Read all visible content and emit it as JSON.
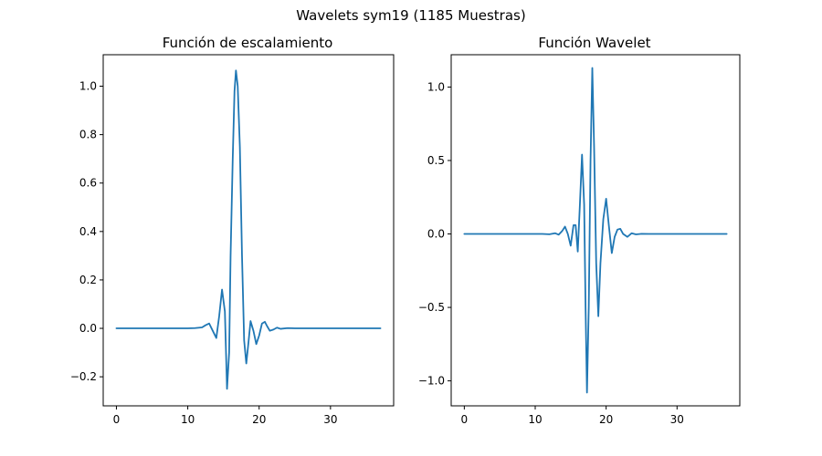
{
  "figure": {
    "suptitle": "Wavelets sym19 (1185 Muestras)"
  },
  "colors": {
    "line": "#1f77b4"
  },
  "chart_data": [
    {
      "type": "line",
      "title": "Función de escalamiento",
      "xlabel": "",
      "ylabel": "",
      "xlim": [
        -1.85,
        38.85
      ],
      "ylim": [
        -0.32,
        1.13
      ],
      "xticks": [
        0,
        10,
        20,
        30
      ],
      "xtick_labels": [
        "0",
        "10",
        "20",
        "30"
      ],
      "yticks": [
        -0.2,
        0.0,
        0.2,
        0.4,
        0.6,
        0.8,
        1.0
      ],
      "ytick_labels": [
        "−0.2",
        "0.0",
        "0.2",
        "0.4",
        "0.6",
        "0.8",
        "1.0"
      ],
      "grid": false,
      "series": [
        {
          "x": [
            0,
            10,
            11,
            12,
            12.5,
            13,
            13.5,
            14,
            14.4,
            14.8,
            15.2,
            15.5,
            15.8,
            16.0,
            16.3,
            16.55,
            16.75,
            17.0,
            17.3,
            17.6,
            17.9,
            18.2,
            18.5,
            18.8,
            19.2,
            19.6,
            20.0,
            20.4,
            20.8,
            21.1,
            21.5,
            22.0,
            22.5,
            23,
            24,
            25,
            26,
            37
          ],
          "y": [
            0,
            0,
            0.001,
            0.004,
            0.013,
            0.02,
            -0.01,
            -0.04,
            0.05,
            0.16,
            0.07,
            -0.25,
            -0.1,
            0.3,
            0.7,
            0.98,
            1.065,
            1.0,
            0.75,
            0.3,
            -0.05,
            -0.145,
            -0.06,
            0.03,
            -0.01,
            -0.065,
            -0.03,
            0.02,
            0.027,
            0.01,
            -0.01,
            -0.005,
            0.003,
            -0.002,
            0.001,
            0,
            0,
            0
          ]
        }
      ]
    },
    {
      "type": "line",
      "title": "Función Wavelet",
      "xlabel": "",
      "ylabel": "",
      "xlim": [
        -1.85,
        38.85
      ],
      "ylim": [
        -1.17,
        1.22
      ],
      "xticks": [
        0,
        10,
        20,
        30
      ],
      "xtick_labels": [
        "0",
        "10",
        "20",
        "30"
      ],
      "yticks": [
        -1.0,
        -0.5,
        0.0,
        0.5,
        1.0
      ],
      "ytick_labels": [
        "−1.0",
        "−0.5",
        "0.0",
        "0.5",
        "1.0"
      ],
      "grid": false,
      "series": [
        {
          "x": [
            0,
            11,
            12,
            12.8,
            13.3,
            13.8,
            14.2,
            14.6,
            15.0,
            15.4,
            15.7,
            16.0,
            16.3,
            16.6,
            16.9,
            17.1,
            17.3,
            17.55,
            17.8,
            18.05,
            18.3,
            18.6,
            18.9,
            19.2,
            19.6,
            20.0,
            20.4,
            20.8,
            21.2,
            21.6,
            22.0,
            22.4,
            23.0,
            23.6,
            24.2,
            25,
            26,
            37
          ],
          "y": [
            0,
            0,
            -0.002,
            0.005,
            -0.005,
            0.02,
            0.05,
            0.0,
            -0.08,
            0.06,
            0.06,
            -0.12,
            0.2,
            0.54,
            0.2,
            -0.5,
            -1.08,
            -0.5,
            0.5,
            1.13,
            0.6,
            -0.2,
            -0.56,
            -0.2,
            0.1,
            0.24,
            0.05,
            -0.13,
            -0.02,
            0.03,
            0.035,
            0.0,
            -0.02,
            0.005,
            -0.003,
            0.001,
            0,
            0
          ]
        }
      ]
    }
  ]
}
